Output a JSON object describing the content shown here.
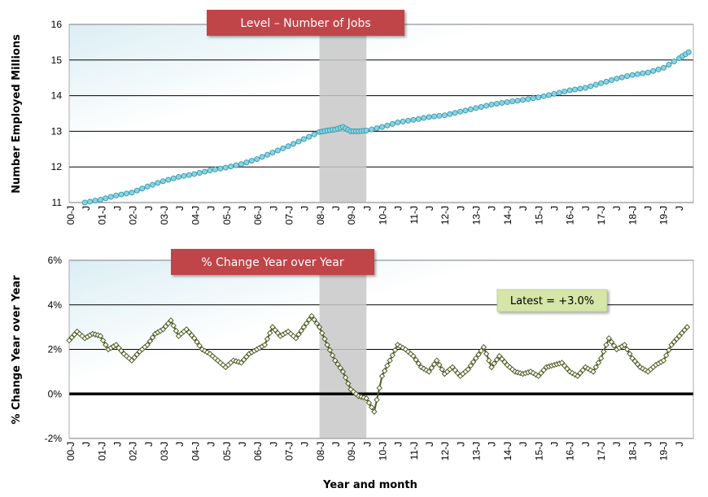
{
  "chart_data": [
    {
      "type": "line",
      "title": "Level – Number of Jobs",
      "ylabel": "Number Employed Millions",
      "xlabel": "",
      "ylim": [
        11,
        16
      ],
      "yticks": [
        "11",
        "12",
        "13",
        "14",
        "15",
        "16"
      ],
      "xticks": [
        "00-J",
        "J",
        "01-J",
        "J",
        "02-J",
        "J",
        "03-J",
        "J",
        "04-J",
        "J",
        "05-J",
        "J",
        "06-J",
        "J",
        "07-J",
        "J",
        "08-J",
        "J",
        "09-J",
        "J",
        "10-J",
        "J",
        "11-J",
        "J",
        "12-J",
        "J",
        "13-J",
        "J",
        "14-J",
        "J",
        "15-J",
        "J",
        "16-J",
        "J",
        "17-J",
        "J",
        "18-J",
        "J",
        "19-J",
        "J"
      ],
      "shade_range": [
        2008.0,
        2009.5
      ],
      "grid": true,
      "line_color": "#3a9fb5",
      "marker_fill": "#8fd3e0",
      "banner_color": "#c0454a",
      "series": [
        {
          "x": [
            2000.5,
            2001.0,
            2001.5,
            2002.0,
            2002.5,
            2003.0,
            2003.5,
            2004.0,
            2004.5,
            2005.0,
            2005.5,
            2006.0,
            2006.5,
            2007.0,
            2007.5,
            2008.0,
            2008.25,
            2008.5,
            2008.75,
            2009.0,
            2009.25,
            2009.5,
            2010.0,
            2010.5,
            2011.0,
            2011.5,
            2012.0,
            2012.5,
            2013.0,
            2013.5,
            2014.0,
            2014.5,
            2015.0,
            2015.5,
            2016.0,
            2016.5,
            2017.0,
            2017.5,
            2018.0,
            2018.5,
            2019.0,
            2019.5,
            2019.8
          ],
          "values": [
            11.0,
            11.08,
            11.2,
            11.28,
            11.45,
            11.6,
            11.72,
            11.8,
            11.9,
            11.98,
            12.08,
            12.22,
            12.4,
            12.58,
            12.78,
            12.98,
            13.02,
            13.05,
            13.12,
            13.0,
            13.0,
            13.02,
            13.12,
            13.25,
            13.32,
            13.4,
            13.45,
            13.55,
            13.65,
            13.75,
            13.82,
            13.88,
            13.95,
            14.05,
            14.15,
            14.22,
            14.35,
            14.48,
            14.58,
            14.65,
            14.78,
            15.05,
            15.22
          ]
        }
      ]
    },
    {
      "type": "line",
      "title": "% Change Year over Year",
      "ylabel": "% Change Year over Year",
      "xlabel": "Year and month",
      "ylim": [
        -2,
        6
      ],
      "yticks": [
        "-2%",
        "0%",
        "2%",
        "4%",
        "6%"
      ],
      "xticks": [
        "00-J",
        "J",
        "01-J",
        "J",
        "02-J",
        "J",
        "03-J",
        "J",
        "04-J",
        "J",
        "05-J",
        "J",
        "06-J",
        "J",
        "07-J",
        "J",
        "08-J",
        "J",
        "09-J",
        "J",
        "10-J",
        "J",
        "11-J",
        "J",
        "12-J",
        "J",
        "13-J",
        "J",
        "14-J",
        "J",
        "15-J",
        "J",
        "16-J",
        "J",
        "17-J",
        "J",
        "18-J",
        "J",
        "19-J",
        "J"
      ],
      "shade_range": [
        2008.0,
        2009.5
      ],
      "grid": true,
      "line_color": "#4d5e24",
      "marker_fill": "#ffffff",
      "banner_color": "#c0454a",
      "annotation": "Latest = +3.0%",
      "series": [
        {
          "x": [
            2000.0,
            2000.25,
            2000.5,
            2000.75,
            2001.0,
            2001.25,
            2001.5,
            2001.75,
            2002.0,
            2002.25,
            2002.5,
            2002.75,
            2003.0,
            2003.25,
            2003.5,
            2003.75,
            2004.0,
            2004.25,
            2004.5,
            2004.75,
            2005.0,
            2005.25,
            2005.5,
            2005.75,
            2006.0,
            2006.25,
            2006.5,
            2006.75,
            2007.0,
            2007.25,
            2007.5,
            2007.75,
            2008.0,
            2008.25,
            2008.5,
            2008.75,
            2009.0,
            2009.25,
            2009.5,
            2009.75,
            2010.0,
            2010.25,
            2010.5,
            2010.75,
            2011.0,
            2011.25,
            2011.5,
            2011.75,
            2012.0,
            2012.25,
            2012.5,
            2012.75,
            2013.0,
            2013.25,
            2013.5,
            2013.75,
            2014.0,
            2014.25,
            2014.5,
            2014.75,
            2015.0,
            2015.25,
            2015.5,
            2015.75,
            2016.0,
            2016.25,
            2016.5,
            2016.75,
            2017.0,
            2017.25,
            2017.5,
            2017.75,
            2018.0,
            2018.25,
            2018.5,
            2018.75,
            2019.0,
            2019.25,
            2019.5,
            2019.75
          ],
          "values": [
            2.4,
            2.8,
            2.5,
            2.7,
            2.6,
            2.0,
            2.2,
            1.8,
            1.5,
            1.9,
            2.2,
            2.7,
            2.9,
            3.3,
            2.6,
            2.9,
            2.5,
            2.0,
            1.8,
            1.5,
            1.2,
            1.5,
            1.4,
            1.8,
            2.0,
            2.2,
            3.0,
            2.6,
            2.8,
            2.5,
            3.0,
            3.5,
            3.0,
            2.2,
            1.5,
            1.0,
            0.2,
            -0.1,
            -0.2,
            -0.8,
            0.8,
            1.5,
            2.2,
            2.0,
            1.7,
            1.2,
            1.0,
            1.5,
            0.9,
            1.2,
            0.8,
            1.1,
            1.6,
            2.1,
            1.2,
            1.7,
            1.3,
            1.0,
            0.9,
            1.0,
            0.8,
            1.2,
            1.3,
            1.4,
            1.0,
            0.8,
            1.2,
            1.0,
            1.6,
            2.5,
            2.0,
            2.2,
            1.6,
            1.2,
            1.0,
            1.3,
            1.5,
            2.2,
            2.6,
            3.0
          ]
        }
      ]
    }
  ]
}
